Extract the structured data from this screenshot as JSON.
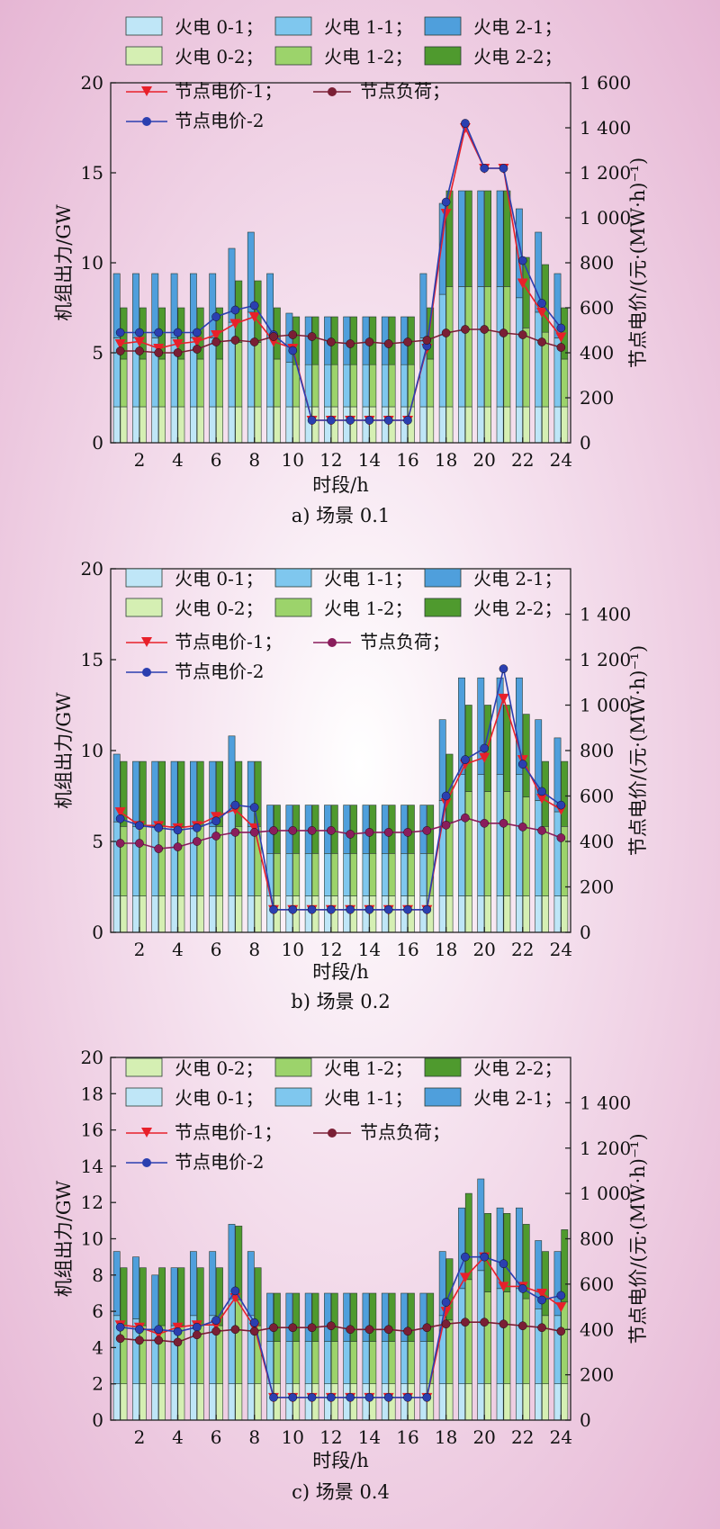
{
  "chart_data": [
    {
      "type": "bar",
      "caption": "a) 场景 0.1",
      "xlabel": "时段/h",
      "ylabel": "机组出力/GW",
      "y2label": "节点电价/(元·(MW·h)⁻¹)",
      "ylim": [
        0,
        20
      ],
      "y2lim": [
        0,
        1600
      ],
      "xticks": [
        2,
        4,
        6,
        8,
        10,
        12,
        14,
        16,
        18,
        20,
        22,
        24
      ],
      "yticks": [
        0,
        5,
        10,
        15,
        20
      ],
      "y2ticks": [
        0,
        200,
        400,
        600,
        800,
        1000,
        1200,
        1400,
        1600
      ],
      "y2ticklabels": [
        "0",
        "200",
        "400",
        "600",
        "800",
        "1 000",
        "1 200",
        "1 400",
        "1 600"
      ],
      "legend": [
        "火电 0-1；",
        "火电 1-1；",
        "火电 2-1；",
        "火电 0-2；",
        "火电 1-2；",
        "火电 2-2；",
        "节点电价-1；",
        "节点负荷；",
        "节点电价-2"
      ],
      "bar_groups": [
        {
          "name": "火电 0-1",
          "stack": [
            "火电 0-1",
            "火电 1-1",
            "火电 2-1"
          ],
          "values": [
            9.4,
            9.4,
            9.4,
            9.4,
            9.4,
            9.4,
            10.8,
            11.7,
            9.4,
            7.2,
            7,
            7,
            7,
            7,
            7,
            7,
            9.4,
            13.3,
            14,
            14,
            14,
            13,
            11.7,
            9.4
          ]
        },
        {
          "name": "火电 0-2",
          "stack": [
            "火电 0-2",
            "火电 1-2",
            "火电 2-2"
          ],
          "values": [
            7.5,
            7.5,
            7.5,
            7.5,
            7.5,
            7.5,
            9,
            9,
            7.5,
            7,
            7,
            7,
            7,
            7,
            7,
            7,
            7.5,
            14,
            14,
            14,
            14,
            10.3,
            9.9,
            7.5
          ]
        }
      ],
      "series": [
        {
          "name": "节点电价-1",
          "color": "#e8202a",
          "marker": "triangle",
          "axis": "right",
          "values": [
            440,
            450,
            420,
            440,
            450,
            480,
            530,
            560,
            450,
            420,
            100,
            100,
            100,
            100,
            100,
            100,
            420,
            1020,
            1400,
            1220,
            1220,
            710,
            580,
            470
          ]
        },
        {
          "name": "节点电价-2",
          "color": "#2b3fb0",
          "marker": "circle",
          "axis": "right",
          "values": [
            490,
            490,
            490,
            490,
            490,
            560,
            590,
            610,
            480,
            410,
            100,
            100,
            100,
            100,
            100,
            100,
            430,
            1070,
            1420,
            1220,
            1220,
            810,
            620,
            510
          ]
        },
        {
          "name": "节点负荷",
          "color": "#7a1f35",
          "marker": "circle",
          "axis": "left",
          "values": [
            5.1,
            5.1,
            5,
            5,
            5.2,
            5.6,
            5.7,
            5.6,
            5.9,
            6,
            5.9,
            5.6,
            5.5,
            5.6,
            5.5,
            5.6,
            5.7,
            6.1,
            6.3,
            6.3,
            6.1,
            6,
            5.6,
            5.3
          ]
        }
      ]
    },
    {
      "type": "bar",
      "caption": "b) 场景 0.2",
      "xlabel": "时段/h",
      "ylabel": "机组出力/GW",
      "y2label": "节点电价/(元·(MW·h)⁻¹)",
      "ylim": [
        0,
        20
      ],
      "y2lim": [
        0,
        1600
      ],
      "xticks": [
        2,
        4,
        6,
        8,
        10,
        12,
        14,
        16,
        18,
        20,
        22,
        24
      ],
      "yticks": [
        0,
        5,
        10,
        15,
        20
      ],
      "y2ticks": [
        0,
        200,
        400,
        600,
        800,
        1000,
        1200,
        1400
      ],
      "y2ticklabels": [
        "0",
        "200",
        "400",
        "600",
        "800",
        "1 000",
        "1 200",
        "1 400"
      ],
      "legend": [
        "火电 0-1；",
        "火电 1-1；",
        "火电 2-1；",
        "火电 0-2；",
        "火电 1-2；",
        "火电 2-2；",
        "节点电价-1；",
        "节点负荷；",
        "节点电价-2"
      ],
      "bar_groups": [
        {
          "name": "火电 0-1",
          "stack": [
            "火电 0-1",
            "火电 1-1",
            "火电 2-1"
          ],
          "values": [
            9.8,
            9.4,
            9.4,
            9.4,
            9.4,
            9.4,
            10.8,
            9.4,
            7,
            7,
            7,
            7,
            7,
            7,
            7,
            7,
            7,
            11.7,
            14,
            14,
            14,
            14,
            11.7,
            10.7
          ]
        },
        {
          "name": "火电 0-2",
          "stack": [
            "火电 0-2",
            "火电 1-2",
            "火电 2-2"
          ],
          "values": [
            9.4,
            9.4,
            9.4,
            9.4,
            9.4,
            9.4,
            9.4,
            9.4,
            7,
            7,
            7,
            7,
            7,
            7,
            7,
            7,
            7,
            9.8,
            12.5,
            12.5,
            12.5,
            12,
            9.4,
            9.4
          ]
        }
      ],
      "series": [
        {
          "name": "节点电价-1",
          "color": "#e8202a",
          "marker": "triangle",
          "axis": "right",
          "values": [
            530,
            470,
            470,
            460,
            470,
            510,
            540,
            460,
            100,
            100,
            100,
            100,
            100,
            100,
            100,
            100,
            100,
            570,
            740,
            770,
            1030,
            760,
            590,
            540
          ]
        },
        {
          "name": "节点电价-2",
          "color": "#2b3fb0",
          "marker": "circle",
          "axis": "right",
          "values": [
            500,
            470,
            460,
            450,
            460,
            490,
            560,
            550,
            100,
            100,
            100,
            100,
            100,
            100,
            100,
            100,
            100,
            600,
            760,
            810,
            1160,
            740,
            620,
            560
          ]
        },
        {
          "name": "节点负荷",
          "color": "#8a1d5c",
          "marker": "circle",
          "axis": "left",
          "values": [
            4.9,
            4.9,
            4.6,
            4.7,
            5,
            5.3,
            5.5,
            5.5,
            5.6,
            5.6,
            5.6,
            5.6,
            5.4,
            5.5,
            5.5,
            5.5,
            5.6,
            5.9,
            6.3,
            6,
            6,
            5.8,
            5.6,
            5.2
          ]
        }
      ]
    },
    {
      "type": "bar",
      "caption": "c) 场景 0.4",
      "xlabel": "时段/h",
      "ylabel": "机组出力/GW",
      "y2label": "节点电价/(元·(MW·h)⁻¹)",
      "ylim": [
        0,
        20
      ],
      "y2lim": [
        0,
        1600
      ],
      "xticks": [
        2,
        4,
        6,
        8,
        10,
        12,
        14,
        16,
        18,
        20,
        22,
        24
      ],
      "yticks": [
        0,
        2,
        4,
        6,
        8,
        10,
        12,
        14,
        16,
        18,
        20
      ],
      "y2ticks": [
        0,
        200,
        400,
        600,
        800,
        1000,
        1200,
        1400
      ],
      "y2ticklabels": [
        "0",
        "200",
        "400",
        "600",
        "800",
        "1 000",
        "1 200",
        "1 400"
      ],
      "legend": [
        "火电 0-2；",
        "火电 1-2；",
        "火电 2-2；",
        "火电 0-1；",
        "火电 1-1；",
        "火电 2-1；",
        "节点电价-1；",
        "节点负荷；",
        "节点电价-2"
      ],
      "bar_groups": [
        {
          "name": "火电 0-1",
          "stack": [
            "火电 0-1",
            "火电 1-1",
            "火电 2-1"
          ],
          "values": [
            9.3,
            9,
            8,
            8.4,
            9.3,
            9.3,
            10.8,
            9.3,
            7,
            7,
            7,
            7,
            7,
            7,
            7,
            7,
            7,
            9.3,
            11.7,
            13.3,
            11.7,
            11.7,
            9.9,
            9.3
          ]
        },
        {
          "name": "火电 0-2",
          "stack": [
            "火电 0-2",
            "火电 1-2",
            "火电 2-2"
          ],
          "values": [
            8.4,
            8.4,
            8.4,
            8.4,
            8.4,
            8.4,
            10.7,
            8.4,
            7,
            7,
            7,
            7,
            7,
            7,
            7,
            7,
            7,
            8.9,
            12.5,
            11.4,
            11.4,
            10.8,
            9.3,
            10.5
          ]
        }
      ],
      "series": [
        {
          "name": "节点电价-1",
          "color": "#e8202a",
          "marker": "triangle",
          "axis": "right",
          "values": [
            420,
            410,
            380,
            410,
            420,
            420,
            540,
            410,
            100,
            100,
            100,
            100,
            100,
            100,
            100,
            100,
            100,
            480,
            630,
            720,
            590,
            590,
            560,
            500
          ]
        },
        {
          "name": "节点电价-2",
          "color": "#2b3fb0",
          "marker": "circle",
          "axis": "right",
          "values": [
            410,
            400,
            400,
            390,
            410,
            440,
            570,
            430,
            100,
            100,
            100,
            100,
            100,
            100,
            100,
            100,
            100,
            520,
            720,
            720,
            690,
            580,
            530,
            550
          ]
        },
        {
          "name": "节点负荷",
          "color": "#7a1f35",
          "marker": "circle",
          "axis": "left",
          "values": [
            4.5,
            4.4,
            4.4,
            4.3,
            4.7,
            4.9,
            5,
            4.9,
            5.1,
            5.1,
            5.1,
            5.2,
            5,
            5,
            5,
            4.9,
            5.1,
            5.3,
            5.4,
            5.4,
            5.3,
            5.2,
            5.1,
            4.9
          ]
        }
      ]
    }
  ],
  "palette": {
    "g01": "#bfe6f7",
    "g11": "#7fc7ee",
    "g21": "#4f9fdc",
    "g02": "#d5efb3",
    "g12": "#9cd36b",
    "g22": "#4f9a2e",
    "price1": "#e8202a",
    "price2": "#2b3fb0",
    "load": "#7a1f35"
  }
}
